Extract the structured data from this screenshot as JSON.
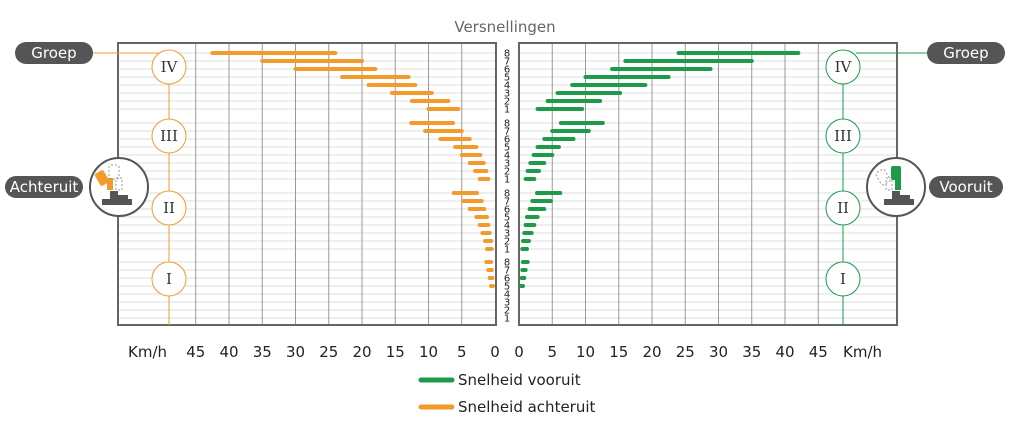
{
  "chart_data": {
    "type": "bar",
    "title": "Versnellingen",
    "unit_left": "Km/h",
    "unit_right": "Km/h",
    "xlim": [
      0,
      48
    ],
    "x_ticks": [
      0,
      5,
      10,
      15,
      20,
      25,
      30,
      35,
      40,
      45
    ],
    "groups": [
      "I",
      "II",
      "III",
      "IV"
    ],
    "gears": [
      "1",
      "2",
      "3",
      "4",
      "5",
      "6",
      "7",
      "8"
    ],
    "group_label": "Groep",
    "left_label": "Achteruit",
    "right_label": "Vooruit",
    "colors": {
      "forward": "#1e9a4b",
      "reverse": "#f39a2c",
      "frame": "#666666",
      "pill": "#555555"
    },
    "legend": [
      {
        "series": "forward",
        "label": "Snelheid vooruit"
      },
      {
        "series": "reverse",
        "label": "Snelheid achteruit"
      }
    ],
    "series": [
      {
        "key": "forward",
        "name": "Snelheid vooruit",
        "bars": [
          {
            "group": "I",
            "gear": "5",
            "min": 0.3,
            "max": 0.6
          },
          {
            "group": "I",
            "gear": "6",
            "min": 0.4,
            "max": 0.8
          },
          {
            "group": "I",
            "gear": "7",
            "min": 0.5,
            "max": 1.0
          },
          {
            "group": "I",
            "gear": "8",
            "min": 0.6,
            "max": 1.3
          },
          {
            "group": "II",
            "gear": "1",
            "min": 0.5,
            "max": 1.2
          },
          {
            "group": "II",
            "gear": "2",
            "min": 0.6,
            "max": 1.5
          },
          {
            "group": "II",
            "gear": "3",
            "min": 0.8,
            "max": 1.9
          },
          {
            "group": "II",
            "gear": "4",
            "min": 1.0,
            "max": 2.3
          },
          {
            "group": "II",
            "gear": "5",
            "min": 1.2,
            "max": 2.8
          },
          {
            "group": "II",
            "gear": "6",
            "min": 1.6,
            "max": 3.8
          },
          {
            "group": "II",
            "gear": "7",
            "min": 2.0,
            "max": 4.8
          },
          {
            "group": "II",
            "gear": "8",
            "min": 2.7,
            "max": 6.2
          },
          {
            "group": "III",
            "gear": "1",
            "min": 1.0,
            "max": 2.3
          },
          {
            "group": "III",
            "gear": "2",
            "min": 1.3,
            "max": 3.0
          },
          {
            "group": "III",
            "gear": "3",
            "min": 1.7,
            "max": 3.8
          },
          {
            "group": "III",
            "gear": "4",
            "min": 2.2,
            "max": 5.0
          },
          {
            "group": "III",
            "gear": "5",
            "min": 2.8,
            "max": 6.0
          },
          {
            "group": "III",
            "gear": "6",
            "min": 3.8,
            "max": 8.2
          },
          {
            "group": "III",
            "gear": "7",
            "min": 5.0,
            "max": 10.5
          },
          {
            "group": "III",
            "gear": "8",
            "min": 6.3,
            "max": 12.6
          },
          {
            "group": "IV",
            "gear": "1",
            "min": 2.8,
            "max": 9.5
          },
          {
            "group": "IV",
            "gear": "2",
            "min": 4.3,
            "max": 12.2
          },
          {
            "group": "IV",
            "gear": "3",
            "min": 5.8,
            "max": 15.2
          },
          {
            "group": "IV",
            "gear": "4",
            "min": 8.0,
            "max": 19.0
          },
          {
            "group": "IV",
            "gear": "5",
            "min": 10.0,
            "max": 22.5
          },
          {
            "group": "IV",
            "gear": "6",
            "min": 14.0,
            "max": 28.8
          },
          {
            "group": "IV",
            "gear": "7",
            "min": 16.0,
            "max": 35.0
          },
          {
            "group": "IV",
            "gear": "8",
            "min": 24.0,
            "max": 42.0
          }
        ]
      },
      {
        "key": "reverse",
        "name": "Snelheid achteruit",
        "bars": [
          {
            "group": "I",
            "gear": "5",
            "min": 0.3,
            "max": 0.6
          },
          {
            "group": "I",
            "gear": "6",
            "min": 0.4,
            "max": 0.8
          },
          {
            "group": "I",
            "gear": "7",
            "min": 0.5,
            "max": 1.0
          },
          {
            "group": "I",
            "gear": "8",
            "min": 0.6,
            "max": 1.3
          },
          {
            "group": "II",
            "gear": "1",
            "min": 0.5,
            "max": 1.2
          },
          {
            "group": "II",
            "gear": "2",
            "min": 0.6,
            "max": 1.5
          },
          {
            "group": "II",
            "gear": "3",
            "min": 0.8,
            "max": 1.9
          },
          {
            "group": "II",
            "gear": "4",
            "min": 1.0,
            "max": 2.3
          },
          {
            "group": "II",
            "gear": "5",
            "min": 1.2,
            "max": 2.8
          },
          {
            "group": "II",
            "gear": "6",
            "min": 1.6,
            "max": 3.8
          },
          {
            "group": "II",
            "gear": "7",
            "min": 2.0,
            "max": 4.8
          },
          {
            "group": "II",
            "gear": "8",
            "min": 2.7,
            "max": 6.2
          },
          {
            "group": "III",
            "gear": "1",
            "min": 1.0,
            "max": 2.3
          },
          {
            "group": "III",
            "gear": "2",
            "min": 1.3,
            "max": 3.0
          },
          {
            "group": "III",
            "gear": "3",
            "min": 1.7,
            "max": 3.8
          },
          {
            "group": "III",
            "gear": "4",
            "min": 2.2,
            "max": 5.0
          },
          {
            "group": "III",
            "gear": "5",
            "min": 2.8,
            "max": 6.0
          },
          {
            "group": "III",
            "gear": "6",
            "min": 3.8,
            "max": 8.2
          },
          {
            "group": "III",
            "gear": "7",
            "min": 5.0,
            "max": 10.5
          },
          {
            "group": "III",
            "gear": "8",
            "min": 6.3,
            "max": 12.6
          },
          {
            "group": "IV",
            "gear": "1",
            "min": 5.5,
            "max": 10.0
          },
          {
            "group": "IV",
            "gear": "2",
            "min": 7.0,
            "max": 12.5
          },
          {
            "group": "IV",
            "gear": "3",
            "min": 9.5,
            "max": 15.5
          },
          {
            "group": "IV",
            "gear": "4",
            "min": 12.0,
            "max": 19.0
          },
          {
            "group": "IV",
            "gear": "5",
            "min": 13.0,
            "max": 23.0
          },
          {
            "group": "IV",
            "gear": "6",
            "min": 18.0,
            "max": 30.0
          },
          {
            "group": "IV",
            "gear": "7",
            "min": 20.0,
            "max": 35.0
          },
          {
            "group": "IV",
            "gear": "8",
            "min": 24.0,
            "max": 42.5
          }
        ]
      }
    ]
  }
}
